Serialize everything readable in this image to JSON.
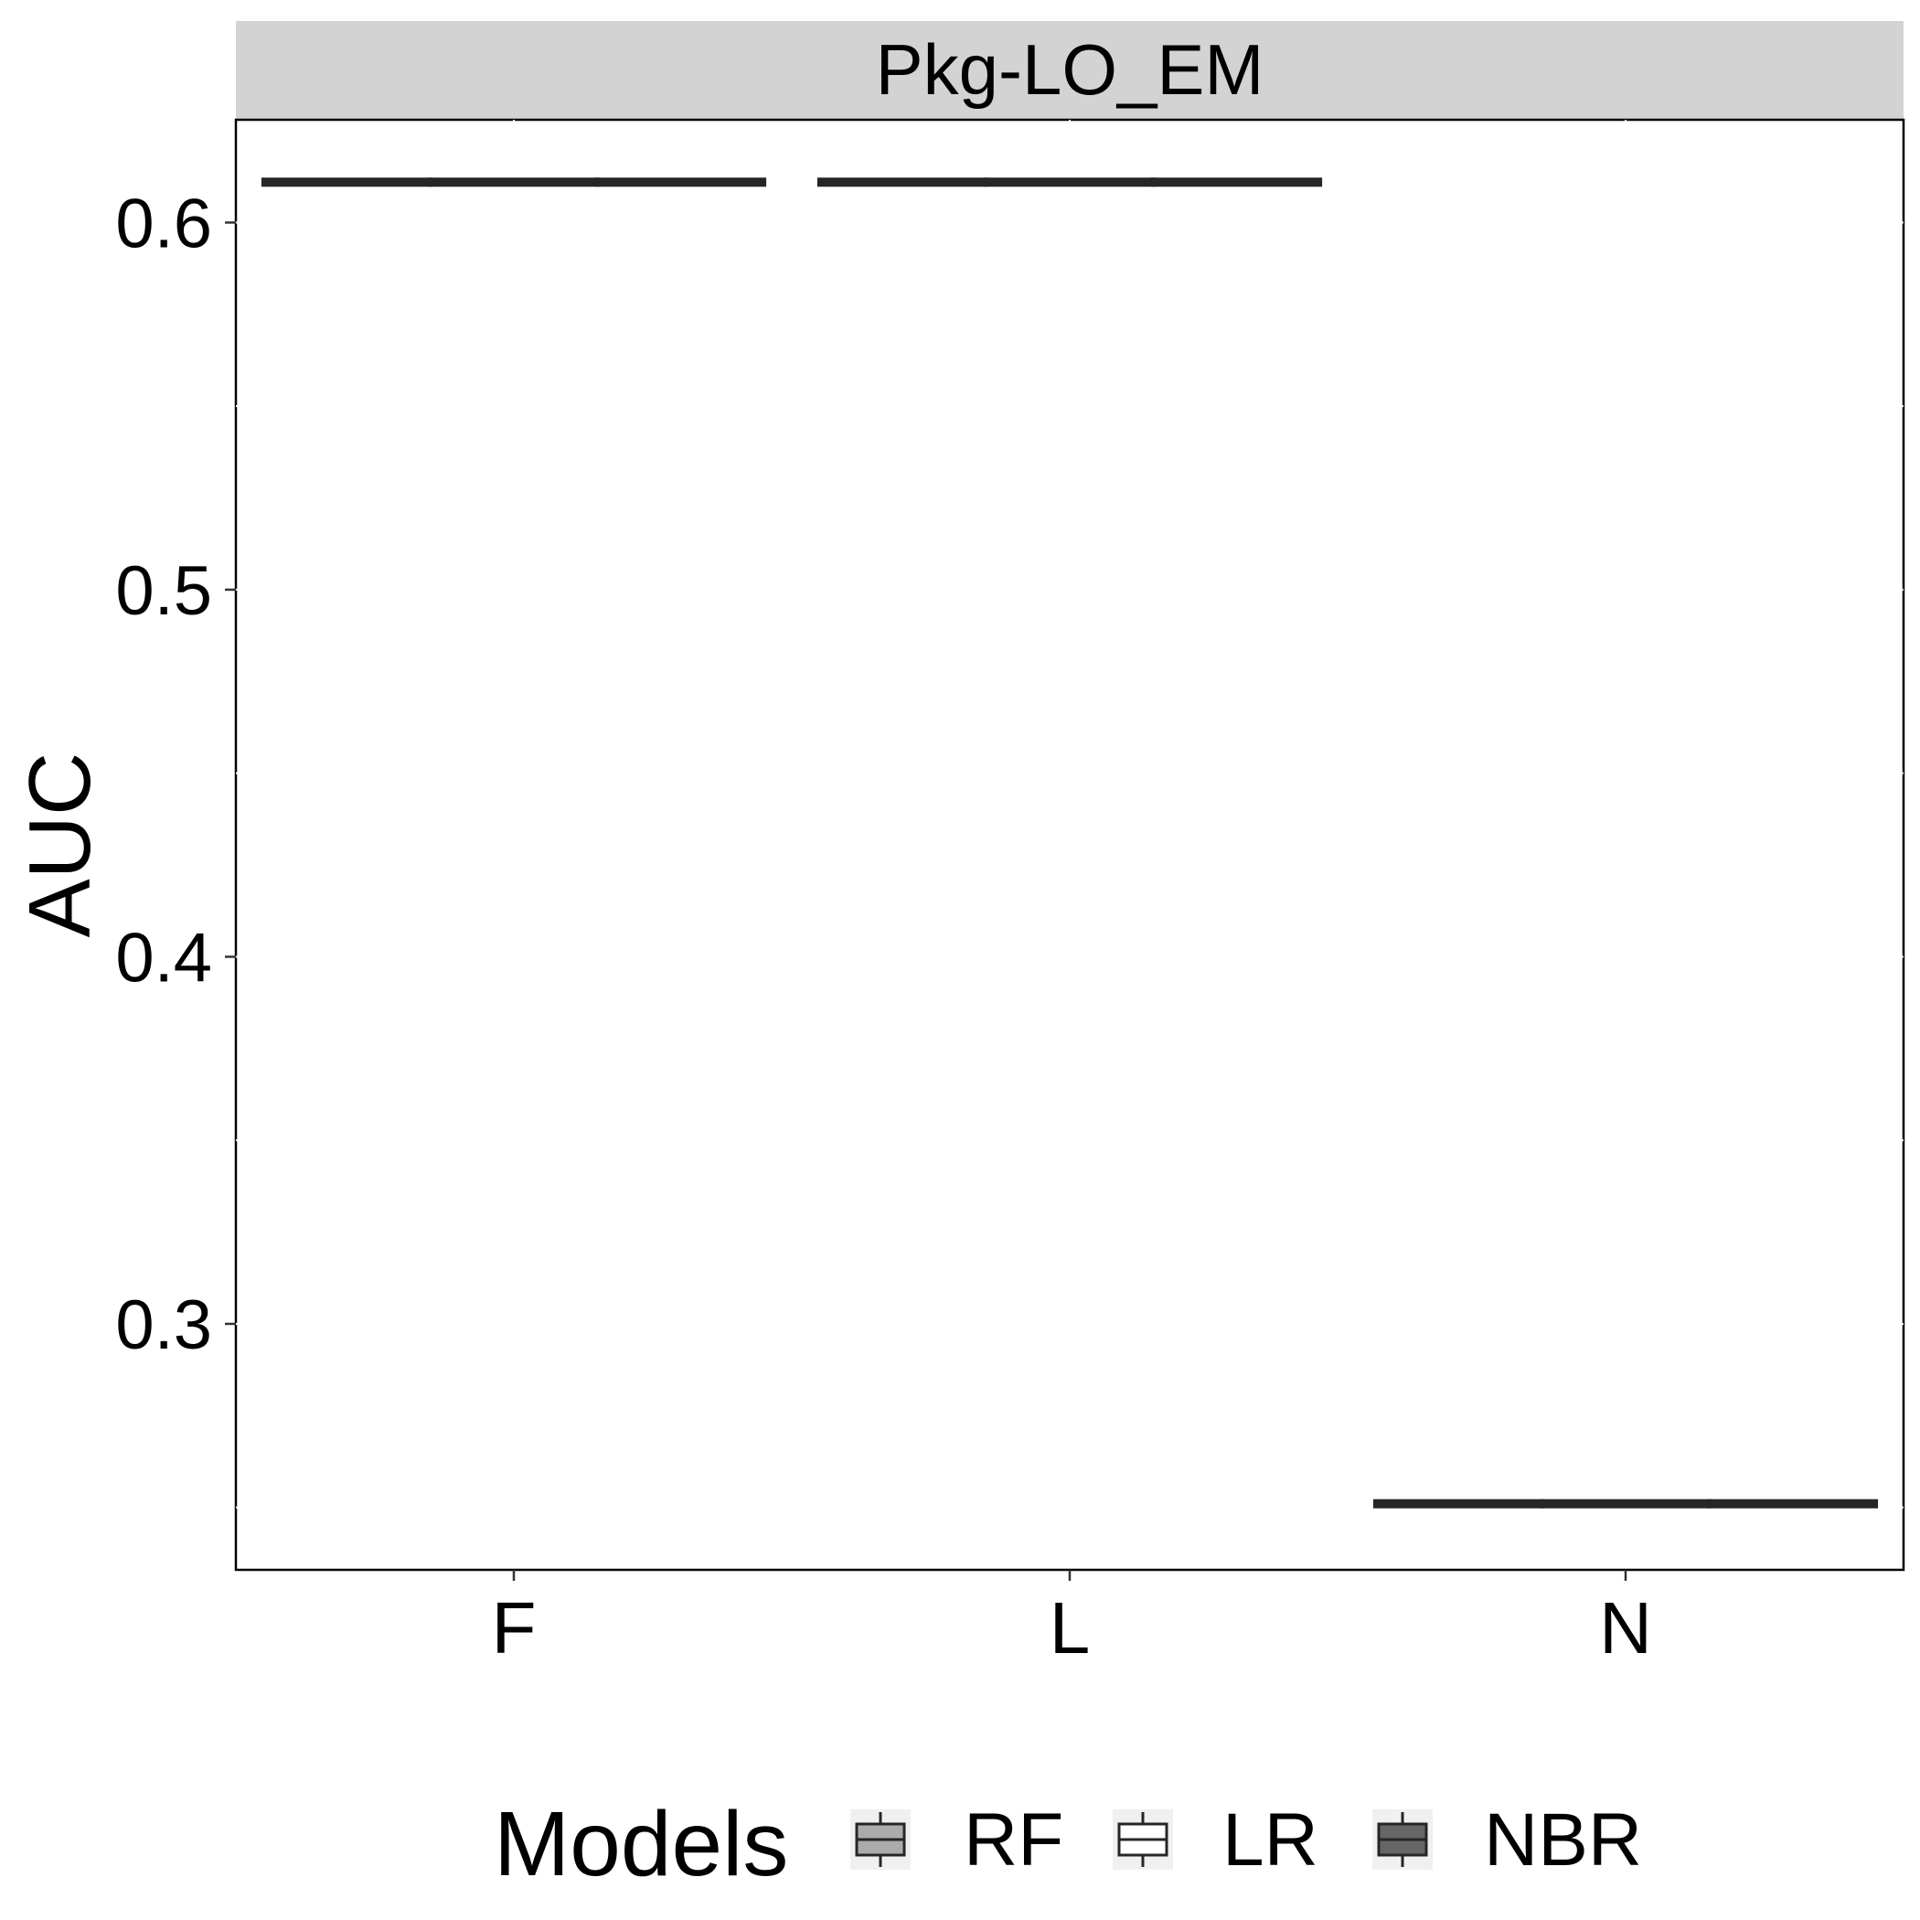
{
  "chart_data": {
    "type": "box",
    "facet_label": "Pkg-LO_EM",
    "categories": [
      "F",
      "L",
      "N"
    ],
    "ylabel": "AUC",
    "xlabel": "",
    "ylim": [
      0.233,
      0.628
    ],
    "y_ticks": [
      0.3,
      0.4,
      0.5,
      0.6
    ],
    "y_tick_labels": [
      "0.3",
      "0.4",
      "0.5",
      "0.6"
    ],
    "y_minor_ticks": [
      0.25,
      0.35,
      0.45,
      0.55
    ],
    "series": [
      {
        "name": "RF",
        "fill": "#ababab",
        "values": [
          0.611,
          0.611,
          0.251
        ]
      },
      {
        "name": "LR",
        "fill": "#ffffff",
        "values": [
          0.611,
          0.611,
          0.251
        ]
      },
      {
        "name": "NBR",
        "fill": "#666666",
        "values": [
          0.611,
          0.611,
          0.251
        ]
      }
    ],
    "legend": {
      "title": "Models",
      "position": "bottom",
      "items": [
        "RF",
        "LR",
        "NBR"
      ]
    },
    "grid": false,
    "colors": {
      "strip": "#d3d3d3",
      "box_line": "#262626",
      "legend_key_bg": "#f0f0f0"
    }
  }
}
